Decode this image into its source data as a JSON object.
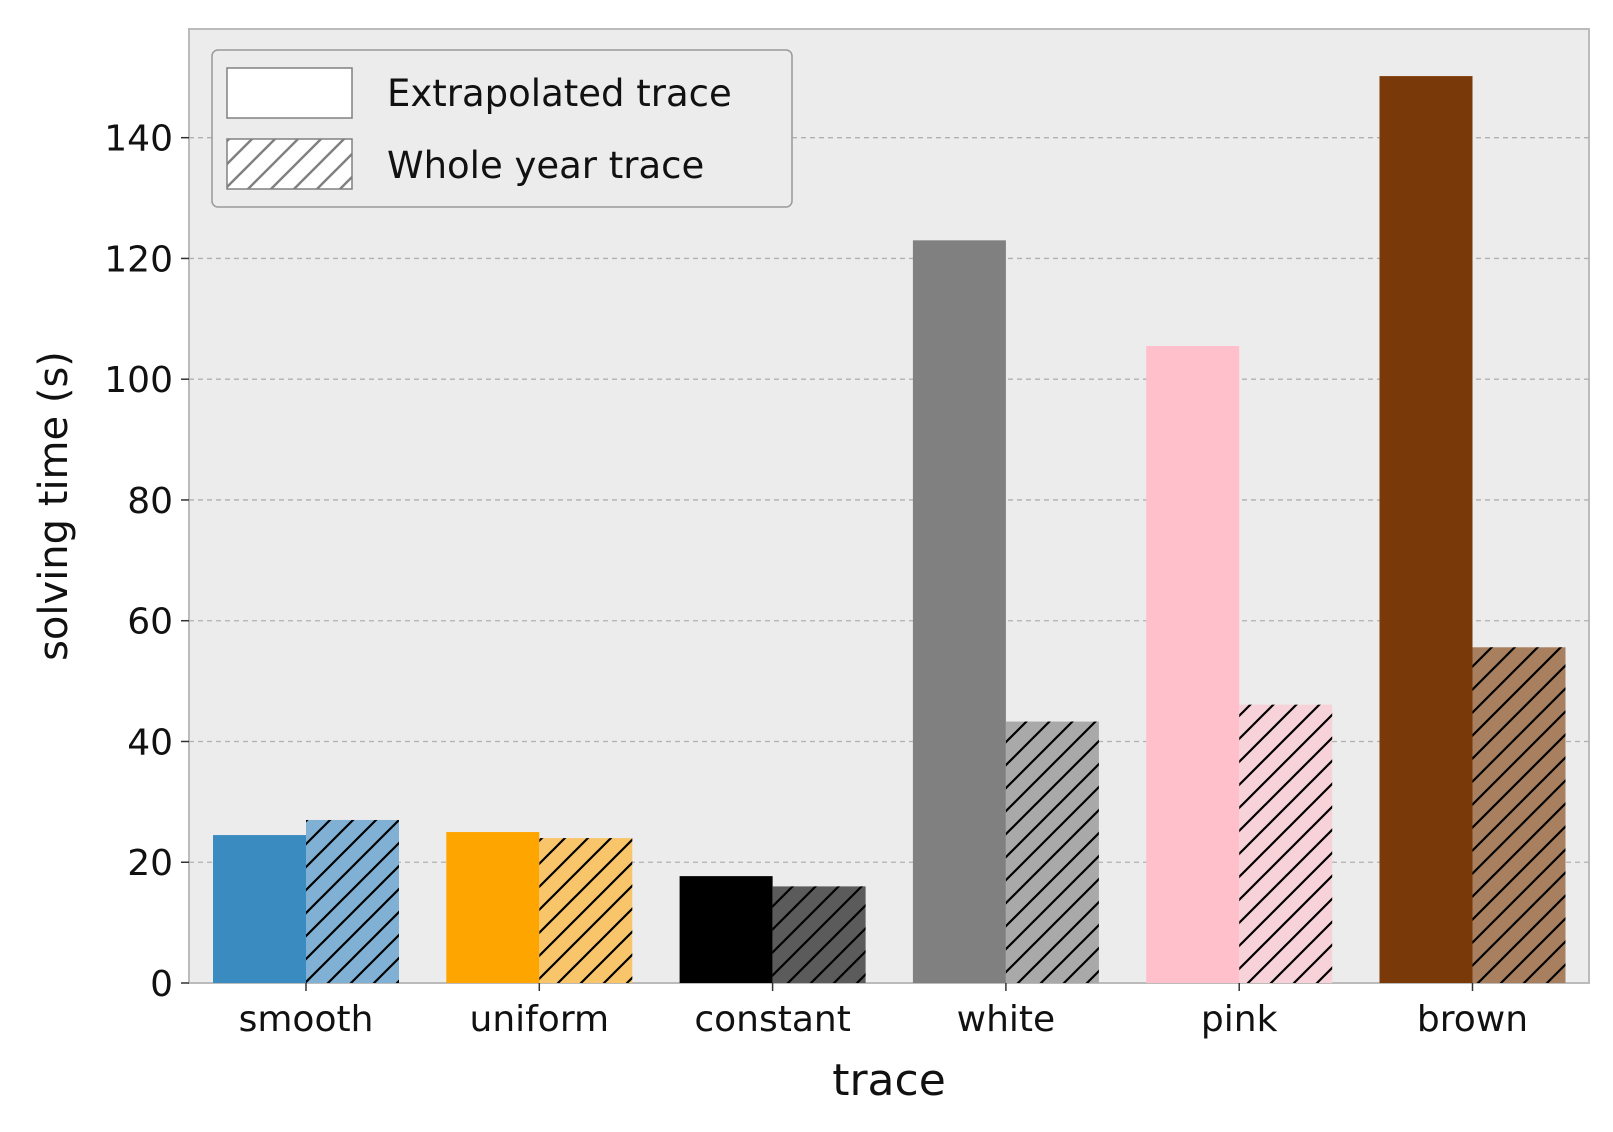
{
  "chart_data": {
    "type": "bar",
    "xlabel": "trace",
    "ylabel": "solving time (s)",
    "categories": [
      "smooth",
      "uniform",
      "constant",
      "white",
      "pink",
      "brown"
    ],
    "ylim": [
      0,
      158
    ],
    "yticks": [
      0,
      20,
      40,
      60,
      80,
      100,
      120,
      140
    ],
    "grid": "horizontal dashed",
    "legend_position": "top-left",
    "background": "#ececec",
    "series": [
      {
        "name": "Extrapolated trace",
        "pattern": "solid",
        "values": [
          24.5,
          25.0,
          17.7,
          123.0,
          105.5,
          150.2
        ],
        "colors": [
          "#3a8bc0",
          "#ffa500",
          "#000000",
          "#808080",
          "#ffc0cb",
          "#7a3909"
        ]
      },
      {
        "name": "Whole year trace",
        "pattern": "hatch",
        "values": [
          27.0,
          24.0,
          16.0,
          43.3,
          46.1,
          55.6
        ],
        "colors": [
          "#80b1d4",
          "#f8c56a",
          "#5b5b5b",
          "#a9a9a9",
          "#f7d2d9",
          "#a88060"
        ]
      }
    ]
  }
}
